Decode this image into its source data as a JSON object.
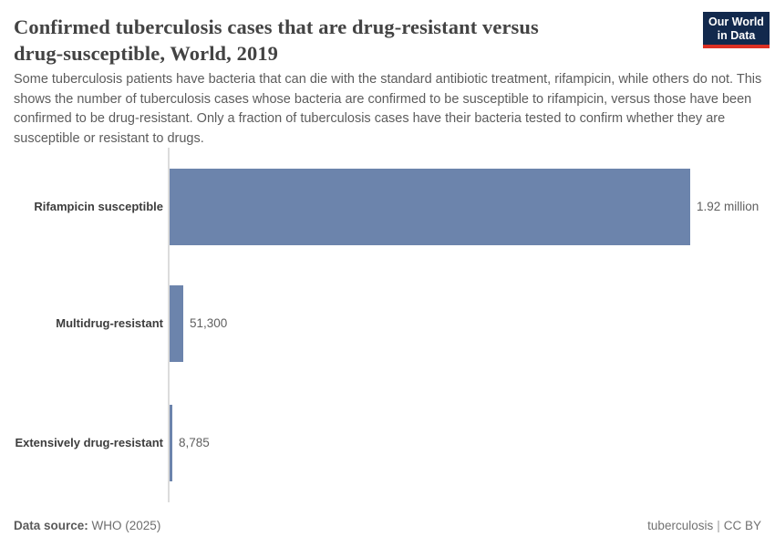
{
  "header": {
    "title_lines": {
      "0": "Confirmed tuberculosis cases that are drug-resistant versus",
      "1": "drug-susceptible, World, 2019"
    },
    "subtitle": "Some tuberculosis patients have bacteria that can die with the standard antibiotic treatment, rifampicin, while others do not. This shows the number of tuberculosis cases whose bacteria are confirmed to be susceptible to rifampicin, versus those have been confirmed to be drug-resistant. Only a fraction of tuberculosis cases have their bacteria tested to confirm whether they are susceptible or resistant to drugs.",
    "logo": {
      "line1": "Our World",
      "line2": "in Data",
      "bg_color": "#12294d",
      "accent_color": "#dc3023"
    }
  },
  "chart_data": {
    "type": "bar",
    "orientation": "horizontal",
    "title": "Confirmed tuberculosis cases that are drug-resistant versus drug-susceptible, World, 2019",
    "categories": [
      "Rifampicin susceptible",
      "Multidrug-resistant",
      "Extensively drug-resistant"
    ],
    "values": [
      1920000,
      51300,
      8785
    ],
    "value_labels": [
      "1.92 million",
      "51,300",
      "8,785"
    ],
    "bar_color": "#6c84ac",
    "axis_line_color": "#dcdcdc",
    "xlim": [
      0,
      1920000
    ],
    "grid": false,
    "legend": "none"
  },
  "footer": {
    "source_label": "Data source:",
    "source_value": "WHO (2025)",
    "right_topic": "tuberculosis",
    "separator": "|",
    "right_license": "CC BY"
  }
}
